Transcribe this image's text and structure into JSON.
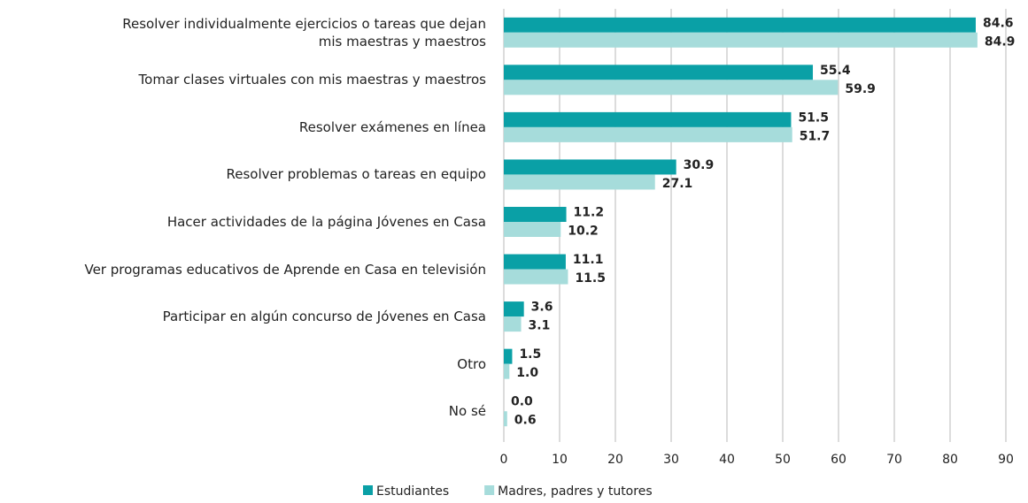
{
  "chart_data": {
    "type": "hbar",
    "categories": [
      "Resolver individualmente ejercicios o tareas que dejan\nmis maestras y maestros",
      "Tomar clases virtuales con mis maestras y maestros",
      "Resolver exámenes en línea",
      "Resolver problemas o tareas en equipo",
      "Hacer actividades de la página Jóvenes en Casa",
      "Ver programas educativos de Aprende en Casa en televisión",
      "Participar en algún concurso de Jóvenes en Casa",
      "Otro",
      "No sé"
    ],
    "series": [
      {
        "name": "Estudiantes",
        "color": "#0aa0a6",
        "values": [
          84.6,
          55.4,
          51.5,
          30.9,
          11.2,
          11.1,
          3.6,
          1.5,
          0
        ],
        "value_labels": [
          "84.6",
          "55.4",
          "51.5",
          "30.9",
          "11.2",
          "11.1",
          "3.6",
          "1.5",
          "0.0"
        ]
      },
      {
        "name": "Madres, padres y tutores",
        "color": "#a6dcdb",
        "values": [
          84.9,
          59.9,
          51.7,
          27.1,
          10.2,
          11.5,
          3.1,
          1.0,
          0.6
        ],
        "value_labels": [
          "84.9",
          "59.9",
          "51.7",
          "27.1",
          "10.2",
          "11.5",
          "3.1",
          "1.0",
          "0.6"
        ]
      }
    ],
    "xlim": [
      0,
      90
    ],
    "xticks": [
      0,
      10,
      20,
      30,
      40,
      50,
      60,
      70,
      80,
      90
    ],
    "grid": true,
    "legend": "bottom"
  }
}
